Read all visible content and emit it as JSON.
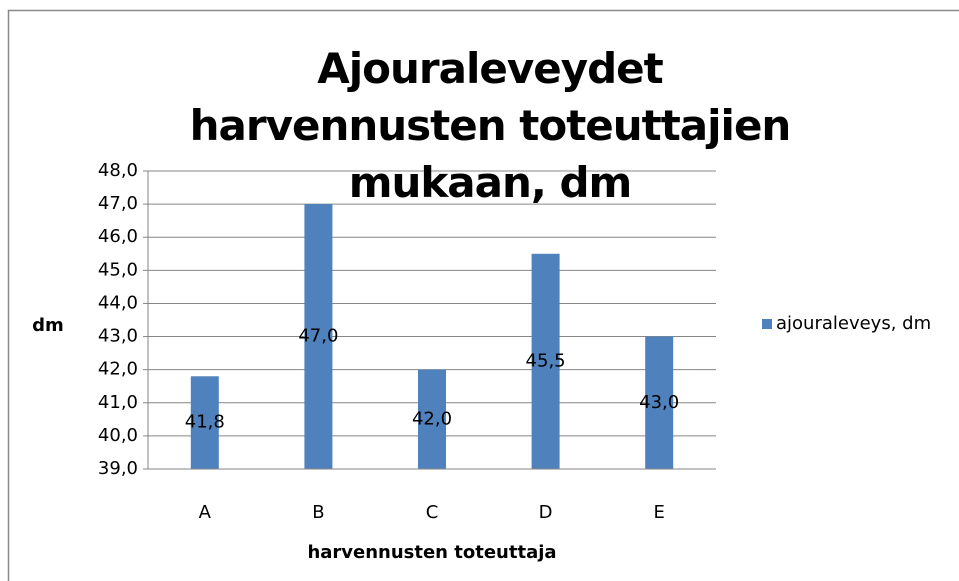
{
  "chart_data": {
    "type": "bar",
    "title": "Ajouraleveydet harvennusten toteuttajien mukaan, dm",
    "ylabel": "dm",
    "xlabel": "harvennusten toteuttaja",
    "categories": [
      "A",
      "B",
      "C",
      "D",
      "E"
    ],
    "series": [
      {
        "name": "ajouraleveys, dm",
        "color": "#4f81bd",
        "values": [
          41.8,
          47.0,
          42.0,
          45.5,
          43.0
        ],
        "value_labels": [
          "41,8",
          "47,0",
          "42,0",
          "45,5",
          "43,0"
        ]
      }
    ],
    "ylim": [
      39,
      48
    ],
    "yticks": [
      {
        "value": 39,
        "label": "39,0"
      },
      {
        "value": 40,
        "label": "40,0"
      },
      {
        "value": 41,
        "label": "41,0"
      },
      {
        "value": 42,
        "label": "42,0"
      },
      {
        "value": 43,
        "label": "43,0"
      },
      {
        "value": 44,
        "label": "44,0"
      },
      {
        "value": 45,
        "label": "45,0"
      },
      {
        "value": 46,
        "label": "46,0"
      },
      {
        "value": 47,
        "label": "47,0"
      },
      {
        "value": 48,
        "label": "48,0"
      }
    ],
    "grid": true,
    "legend": "right"
  }
}
